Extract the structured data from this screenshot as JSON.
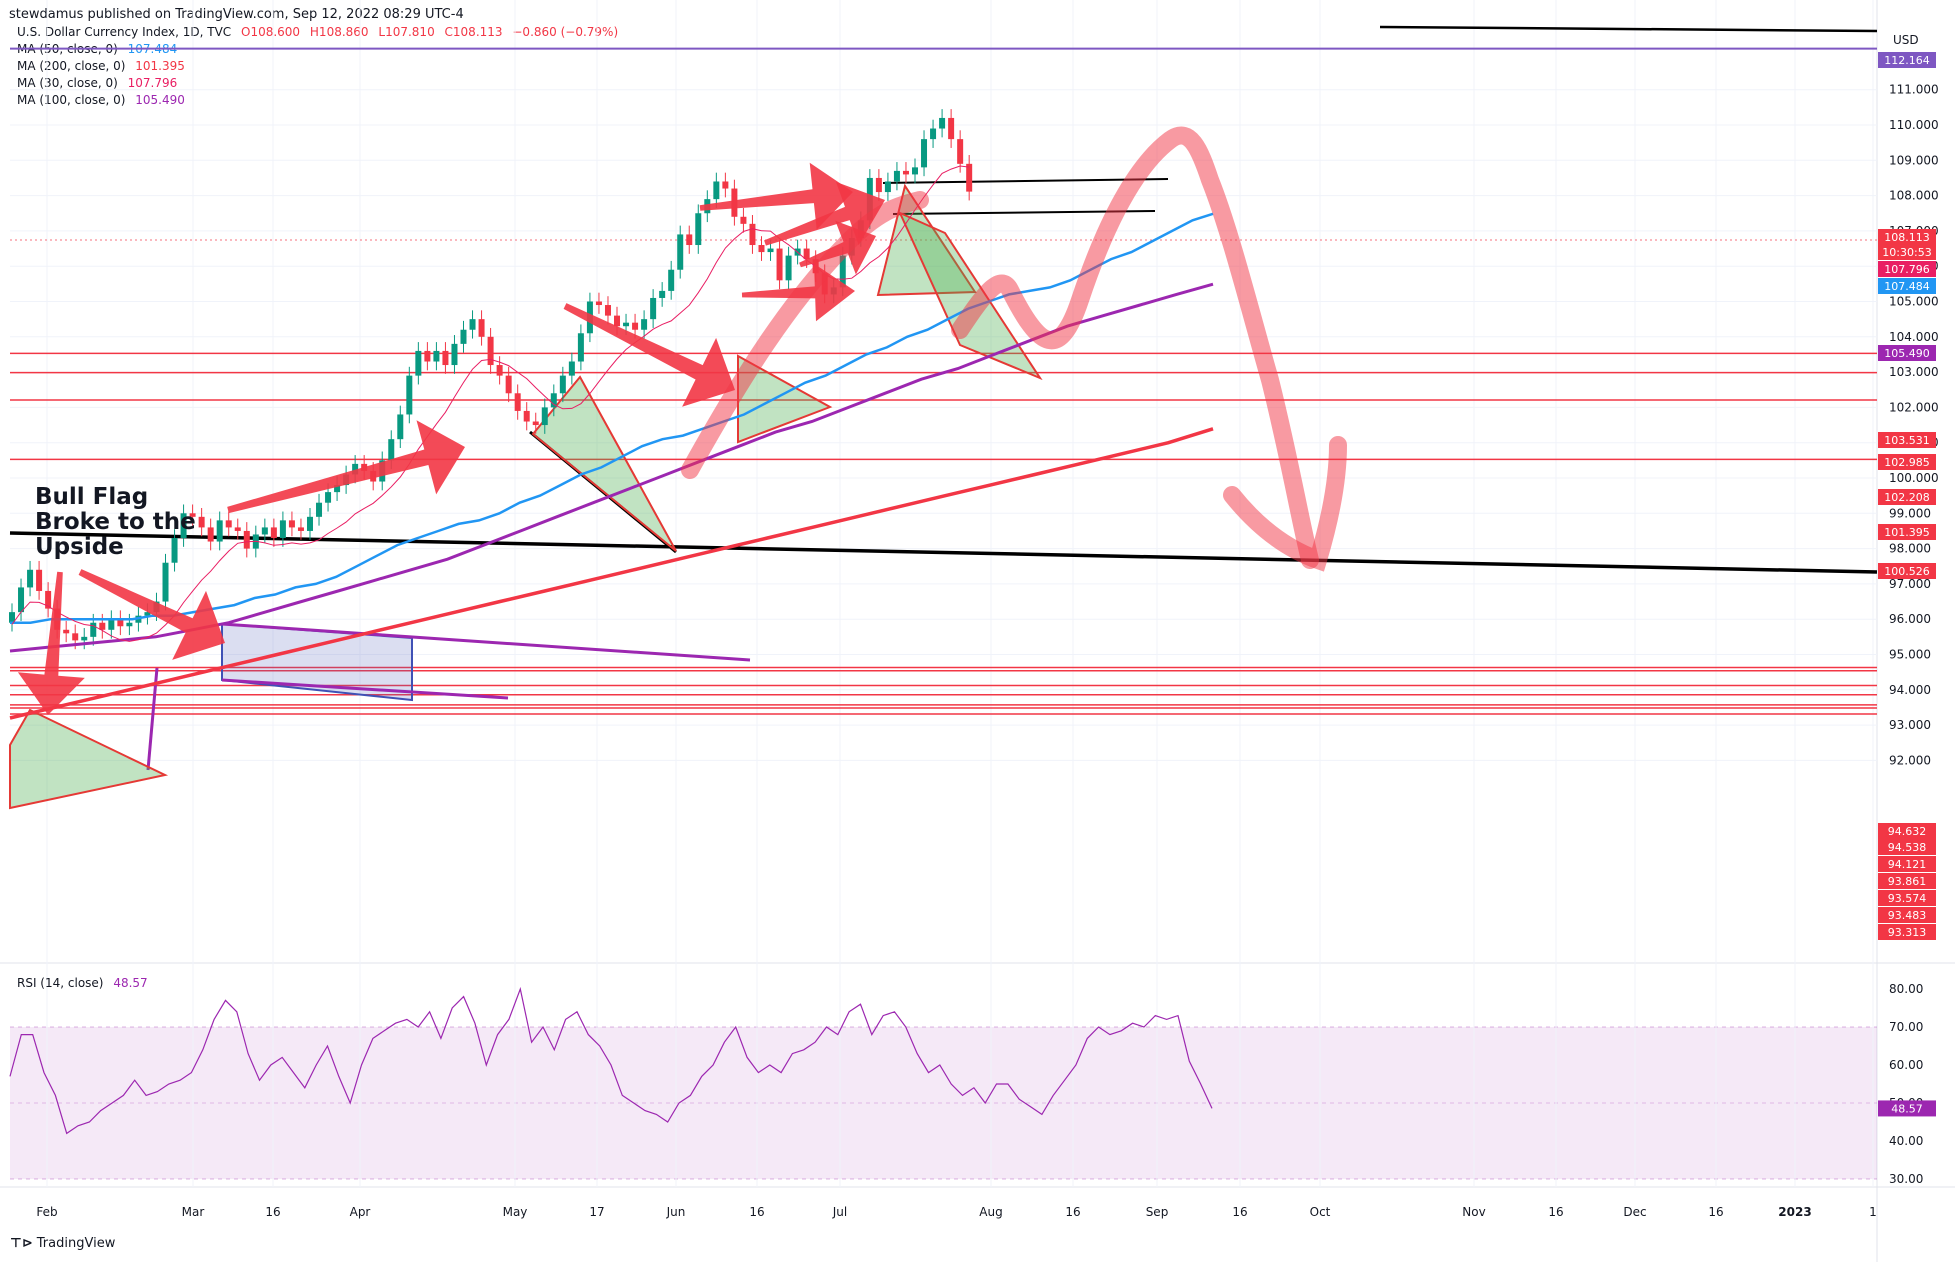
{
  "header": {
    "publisher_line": "stewdamus published on TradingView.com, Sep 12, 2022 08:29 UTC-4"
  },
  "legend": {
    "symbol": "U.S. Dollar Currency Index, 1D, TVC",
    "ohlc": {
      "o": "O108.600",
      "h": "H108.860",
      "l": "L107.810",
      "c": "C108.113",
      "chg": "−0.860 (−0.79%)"
    },
    "mas": [
      {
        "label": "MA (50, close, 0)",
        "value": "107.484",
        "color": "#2196f3"
      },
      {
        "label": "MA (200, close, 0)",
        "value": "101.395",
        "color": "#f23645"
      },
      {
        "label": "MA (30, close, 0)",
        "value": "107.796",
        "color": "#e91e63"
      },
      {
        "label": "MA (100, close, 0)",
        "value": "105.490",
        "color": "#9c27b0"
      }
    ]
  },
  "axis": {
    "unit": "USD",
    "price_ticks": [
      "111.000",
      "110.000",
      "109.000",
      "108.000",
      "107.000",
      "106.000",
      "105.000",
      "104.000",
      "103.000",
      "102.000",
      "101.000",
      "100.000",
      "99.000",
      "98.000",
      "97.000",
      "96.000",
      "95.000",
      "94.000",
      "93.000",
      "92.000"
    ],
    "time_ticks": [
      "Feb",
      "Mar",
      "16",
      "Apr",
      "May",
      "17",
      "Jun",
      "16",
      "Jul",
      "Aug",
      "16",
      "Sep",
      "16",
      "Oct",
      "Nov",
      "16",
      "Dec",
      "16",
      "2023",
      "1"
    ],
    "rsi_ticks": [
      "80.00",
      "70.00",
      "60.00",
      "50.00",
      "40.00",
      "30.00"
    ]
  },
  "price_labels": [
    {
      "text": "112.164",
      "color": "#7e57c2"
    },
    {
      "text": "108.113",
      "color": "#f23645"
    },
    {
      "text": "10:30:53",
      "color": "#f23645"
    },
    {
      "text": "107.796",
      "color": "#e91e63"
    },
    {
      "text": "107.484",
      "color": "#2196f3"
    },
    {
      "text": "105.490",
      "color": "#9c27b0"
    },
    {
      "text": "103.531",
      "color": "#f23645"
    },
    {
      "text": "102.985",
      "color": "#f23645"
    },
    {
      "text": "102.208",
      "color": "#f23645"
    },
    {
      "text": "101.395",
      "color": "#f23645"
    },
    {
      "text": "100.526",
      "color": "#f23645"
    },
    {
      "text": "94.632",
      "color": "#f23645"
    },
    {
      "text": "94.538",
      "color": "#f23645"
    },
    {
      "text": "94.121",
      "color": "#f23645"
    },
    {
      "text": "93.861",
      "color": "#f23645"
    },
    {
      "text": "93.574",
      "color": "#f23645"
    },
    {
      "text": "93.483",
      "color": "#f23645"
    },
    {
      "text": "93.313",
      "color": "#f23645"
    }
  ],
  "annotation": {
    "line1": "Bull Flag",
    "line2": "Broke to the",
    "line3": "Upside"
  },
  "rsi": {
    "label": "RSI (14, close)",
    "value": "48.57",
    "color": "#9c27b0"
  },
  "footer": {
    "brand": "TradingView"
  },
  "chart_data": {
    "type": "line",
    "title": "U.S. Dollar Currency Index, 1D, TVC",
    "ylabel": "USD",
    "ylim": [
      91.8,
      112.5
    ],
    "colors": {
      "up": "#089981",
      "down": "#f23645",
      "ma50": "#2196f3",
      "ma200": "#f23645",
      "ma30": "#e91e63",
      "ma100": "#9c27b0"
    },
    "close": [
      96.2,
      96.9,
      97.4,
      96.8,
      96.3,
      95.7,
      95.6,
      95.4,
      95.5,
      95.9,
      95.7,
      96.0,
      95.8,
      95.9,
      96.1,
      96.2,
      96.5,
      97.6,
      98.3,
      99.0,
      98.9,
      98.6,
      98.2,
      98.8,
      98.6,
      98.5,
      98.0,
      98.4,
      98.6,
      98.3,
      98.8,
      98.6,
      98.5,
      98.9,
      99.3,
      99.6,
      99.8,
      100.1,
      100.4,
      100.2,
      99.9,
      100.5,
      101.1,
      101.8,
      102.9,
      103.6,
      103.3,
      103.6,
      103.2,
      103.8,
      104.2,
      104.5,
      104.0,
      103.2,
      102.9,
      102.4,
      101.9,
      101.6,
      101.5,
      102.0,
      102.4,
      102.9,
      103.3,
      104.1,
      105.0,
      104.9,
      104.6,
      104.3,
      104.4,
      104.2,
      104.5,
      105.1,
      105.3,
      105.9,
      106.9,
      106.6,
      107.5,
      107.9,
      108.4,
      108.2,
      107.4,
      107.2,
      106.6,
      106.4,
      106.5,
      105.6,
      106.3,
      106.5,
      106.2,
      105.8,
      105.2,
      105.4,
      106.3,
      106.8,
      107.3,
      108.5,
      108.1,
      108.4,
      108.7,
      108.6,
      108.8,
      109.6,
      109.9,
      110.2,
      109.6,
      108.9,
      108.113
    ],
    "rsi_values": [
      57,
      68,
      68,
      58,
      52,
      42,
      44,
      45,
      48,
      50,
      52,
      56,
      52,
      53,
      55,
      56,
      58,
      64,
      72,
      77,
      74,
      63,
      56,
      60,
      62,
      58,
      54,
      60,
      65,
      57,
      50,
      60,
      67,
      69,
      71,
      72,
      70,
      74,
      67,
      75,
      78,
      71,
      60,
      68,
      72,
      80,
      66,
      70,
      64,
      72,
      74,
      68,
      65,
      60,
      52,
      50,
      48,
      47,
      45,
      50,
      52,
      57,
      60,
      66,
      70,
      62,
      58,
      60,
      58,
      63,
      64,
      66,
      70,
      68,
      74,
      76,
      68,
      73,
      74,
      70,
      63,
      58,
      60,
      55,
      52,
      54,
      50,
      55,
      55,
      51,
      49,
      47,
      52,
      56,
      60,
      67,
      70,
      68,
      69,
      71,
      70,
      73,
      72,
      73,
      61,
      55,
      48.57
    ],
    "rsi_ylim": [
      27,
      83
    ],
    "ma50": [
      95.9,
      95.9,
      96.0,
      96.0,
      96.0,
      96.0,
      96.0,
      96.1,
      96.1,
      96.2,
      96.3,
      96.4,
      96.6,
      96.7,
      96.9,
      97.0,
      97.2,
      97.5,
      97.8,
      98.1,
      98.3,
      98.5,
      98.7,
      98.8,
      99.0,
      99.3,
      99.5,
      99.8,
      100.1,
      100.3,
      100.6,
      100.9,
      101.1,
      101.2,
      101.4,
      101.6,
      101.8,
      102.1,
      102.4,
      102.7,
      102.9,
      103.2,
      103.5,
      103.7,
      104.0,
      104.2,
      104.5,
      104.8,
      105.0,
      105.2,
      105.3,
      105.4,
      105.6,
      105.9,
      106.2,
      106.4,
      106.7,
      107.0,
      107.3,
      107.484
    ],
    "ma50_start_index": 47,
    "ma100": [
      95.1,
      95.2,
      95.3,
      95.4,
      95.5,
      95.7,
      95.9,
      96.2,
      96.5,
      96.8,
      97.1,
      97.4,
      97.7,
      98.1,
      98.5,
      98.9,
      99.3,
      99.7,
      100.1,
      100.5,
      100.9,
      101.3,
      101.6,
      102.0,
      102.4,
      102.8,
      103.1,
      103.5,
      103.9,
      104.3,
      104.6,
      104.9,
      105.2,
      105.49
    ],
    "ma200": [
      93.2,
      93.5,
      93.8,
      94.1,
      94.4,
      94.7,
      95.0,
      95.3,
      95.6,
      95.9,
      96.2,
      96.5,
      96.8,
      97.1,
      97.4,
      97.7,
      98.0,
      98.3,
      98.6,
      98.9,
      99.2,
      99.5,
      99.8,
      100.1,
      100.4,
      100.7,
      101.0,
      101.395
    ]
  }
}
